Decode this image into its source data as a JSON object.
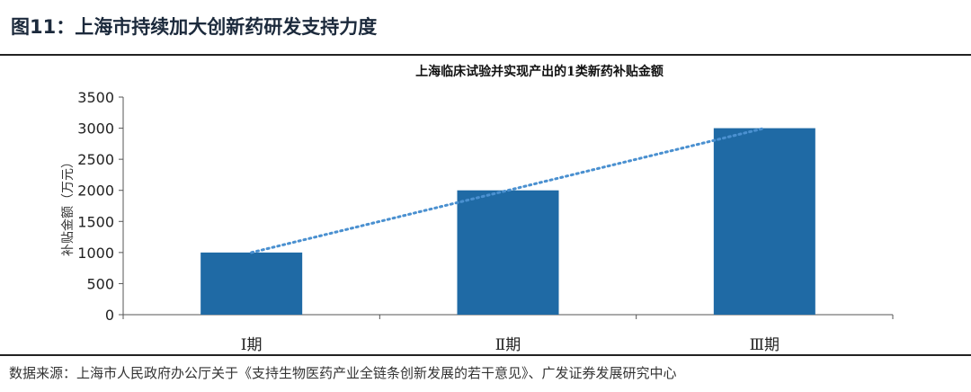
{
  "figure_title": "图11：上海市持续加大创新药研发支持力度",
  "source": "数据来源：上海市人民政府办公厅关于《支持生物医药产业全链条创新发展的若干意见》、广发证券发展研究中心",
  "chart_data": {
    "type": "bar",
    "title": "上海临床试验并实现产出的1类新药补贴金额",
    "ylabel": "补贴金额（万元）",
    "xlabel": "",
    "categories": [
      "Ⅰ期",
      "Ⅱ期",
      "Ⅲ期"
    ],
    "values": [
      1000,
      2000,
      3000
    ],
    "ylim": [
      0,
      3500
    ],
    "yticks": [
      0,
      500,
      1000,
      1500,
      2000,
      2500,
      3000,
      3500
    ],
    "trendline": "linear, dotted",
    "bar_color": "#1f6aa5",
    "trend_color": "#4a90d0",
    "grid": false
  }
}
